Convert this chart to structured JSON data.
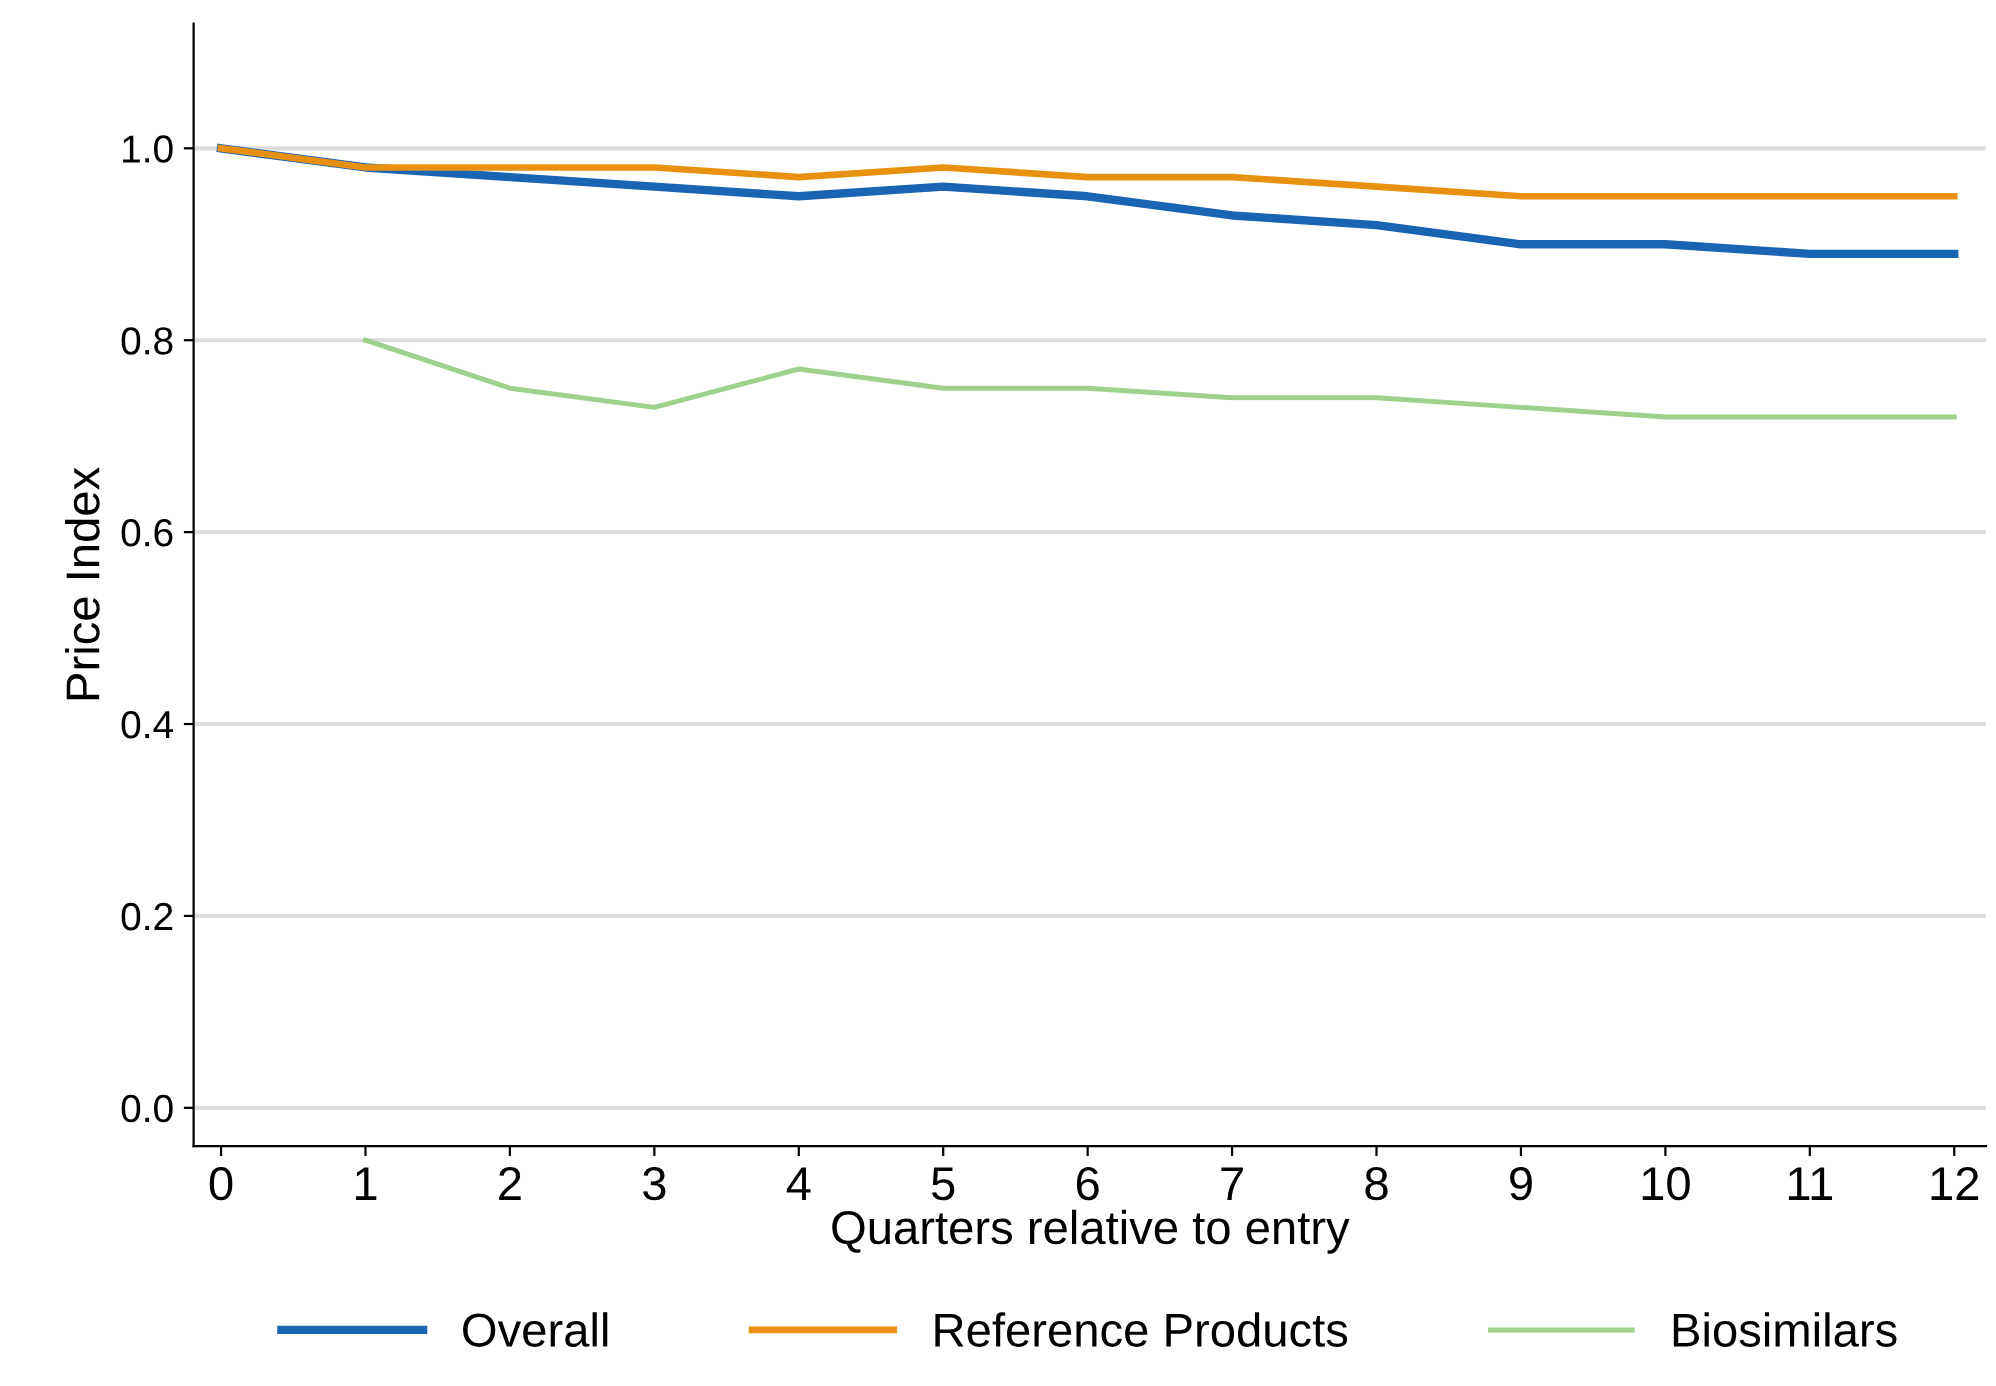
{
  "chart_data": {
    "type": "line",
    "xlabel": "Quarters relative to entry",
    "ylabel": "Price Index",
    "x": [
      0,
      1,
      2,
      3,
      4,
      5,
      6,
      7,
      8,
      9,
      10,
      11,
      12
    ],
    "series": [
      {
        "name": "Overall",
        "color": "#1a64b4",
        "values": [
          1.0,
          0.98,
          0.97,
          0.96,
          0.95,
          0.96,
          0.95,
          0.93,
          0.92,
          0.9,
          0.9,
          0.89,
          0.89
        ]
      },
      {
        "name": "Reference Products",
        "color": "#e8900f",
        "values": [
          1.0,
          0.98,
          0.98,
          0.98,
          0.97,
          0.98,
          0.97,
          0.97,
          0.96,
          0.95,
          0.95,
          0.95,
          0.95
        ]
      },
      {
        "name": "Biosimilars",
        "color": "#9ed28c",
        "values": [
          null,
          0.8,
          0.75,
          0.73,
          0.77,
          0.75,
          0.75,
          0.74,
          0.74,
          0.73,
          0.72,
          0.72,
          0.72
        ]
      }
    ],
    "xlim": [
      -0.19,
      12.22
    ],
    "ylim": [
      -0.04,
      1.13
    ],
    "xticks": [
      0,
      1,
      2,
      3,
      4,
      5,
      6,
      7,
      8,
      9,
      10,
      11,
      12
    ],
    "yticks": [
      {
        "value": 0,
        "label": "0.0"
      },
      {
        "value": 0.2,
        "label": "0.2"
      },
      {
        "value": 0.4,
        "label": "0.4"
      },
      {
        "value": 0.6,
        "label": "0.6"
      },
      {
        "value": 0.8,
        "label": "0.8"
      },
      {
        "value": 1,
        "label": "1.0"
      }
    ],
    "grid": "y",
    "legend": "bottom",
    "marker": "none",
    "line_style": "solid"
  }
}
